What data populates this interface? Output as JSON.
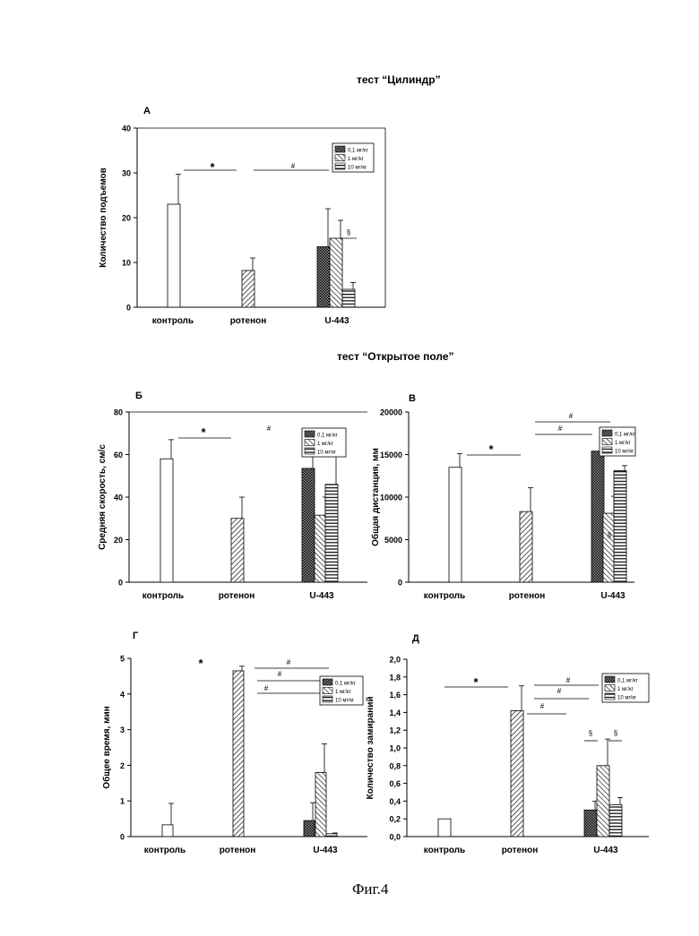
{
  "titles": {
    "cylinder": "тест “Цилиндр”",
    "open_field": "тест “Открытое поле”"
  },
  "caption": "Фиг.4",
  "legend": [
    "0,1 мг/кг",
    "1 мг/кг",
    "10 мг/кг"
  ],
  "chart_data": [
    {
      "panel": "А",
      "type": "bar",
      "ylabel": "Количество подъемов",
      "ylim": [
        0,
        40
      ],
      "yticks": [
        "0",
        "10",
        "20",
        "30",
        "40"
      ],
      "categories": [
        "контроль",
        "ротенон",
        "U-443"
      ],
      "bars": [
        {
          "group": "контроль",
          "value": 23,
          "error": 6.7
        },
        {
          "group": "ротенон",
          "value": 8.2,
          "error": 2.8
        },
        {
          "group": "U-443",
          "series": "0,1 мг/кг",
          "value": 13.5,
          "error": 8.5
        },
        {
          "group": "U-443",
          "series": "1 мг/кг",
          "value": 15.4,
          "error": 4
        },
        {
          "group": "U-443",
          "series": "10 мг/кг",
          "value": 4,
          "error": 1.5
        }
      ],
      "annotations": [
        "*",
        "#",
        "§"
      ]
    },
    {
      "panel": "Б",
      "type": "bar",
      "ylabel": "Средняя скорость, см/с",
      "ylim": [
        0,
        80
      ],
      "yticks": [
        "0",
        "20",
        "40",
        "60",
        "80"
      ],
      "categories": [
        "контроль",
        "ротенон",
        "U-443"
      ],
      "bars": [
        {
          "group": "контроль",
          "value": 58,
          "error": 9
        },
        {
          "group": "ротенон",
          "value": 30,
          "error": 10
        },
        {
          "group": "U-443",
          "series": "0,1 мг/кг",
          "value": 53.5,
          "error": 15.5
        },
        {
          "group": "U-443",
          "series": "1 мг/кг",
          "value": 31.5,
          "error": 8.5
        },
        {
          "group": "U-443",
          "series": "10 мг/кг",
          "value": 46,
          "error": 15
        }
      ],
      "annotations": [
        "*",
        "#"
      ]
    },
    {
      "panel": "В",
      "type": "bar",
      "ylabel": "Общая дистанция, мм",
      "ylim": [
        0,
        20000
      ],
      "yticks": [
        "0",
        "5000",
        "10000",
        "15000",
        "20000"
      ],
      "categories": [
        "контроль",
        "ротенон",
        "U-443"
      ],
      "bars": [
        {
          "group": "контроль",
          "value": 13500,
          "error": 1600
        },
        {
          "group": "ротенон",
          "value": 8300,
          "error": 2800
        },
        {
          "group": "U-443",
          "series": "0,1 мг/кг",
          "value": 15400,
          "error": 2700
        },
        {
          "group": "U-443",
          "series": "1 мг/кг",
          "value": 8100,
          "error": 2000
        },
        {
          "group": "U-443",
          "series": "10 мг/кг",
          "value": 13100,
          "error": 600
        }
      ],
      "annotations": [
        "*",
        "#",
        "#",
        "§"
      ]
    },
    {
      "panel": "Г",
      "type": "bar",
      "ylabel": "Общее время, мин",
      "ylim": [
        0,
        5
      ],
      "yticks": [
        "0",
        "1",
        "2",
        "3",
        "4",
        "5"
      ],
      "categories": [
        "контроль",
        "ротенон",
        "U-443"
      ],
      "bars": [
        {
          "group": "контроль",
          "value": 0.33,
          "error": 0.6
        },
        {
          "group": "ротенон",
          "value": 4.65,
          "error": 0.13
        },
        {
          "group": "U-443",
          "series": "0,1 мг/кг",
          "value": 0.45,
          "error": 0.5
        },
        {
          "group": "U-443",
          "series": "1 мг/кг",
          "value": 1.8,
          "error": 0.8
        },
        {
          "group": "U-443",
          "series": "10 мг/кг",
          "value": 0.08,
          "error": 0.02
        }
      ],
      "annotations": [
        "*",
        "#",
        "#",
        "#"
      ]
    },
    {
      "panel": "Д",
      "type": "bar",
      "ylabel": "Количество замираний",
      "ylim": [
        0,
        2
      ],
      "yticks": [
        "0,0",
        "0,2",
        "0,4",
        "0,6",
        "0,8",
        "1,0",
        "1,2",
        "1,4",
        "1,6",
        "1,8",
        "2,0"
      ],
      "categories": [
        "контроль",
        "ротенон",
        "U-443"
      ],
      "bars": [
        {
          "group": "контроль",
          "value": 0.2,
          "error": 0
        },
        {
          "group": "ротенон",
          "value": 1.42,
          "error": 0.28
        },
        {
          "group": "U-443",
          "series": "0,1 мг/кг",
          "value": 0.3,
          "error": 0.1
        },
        {
          "group": "U-443",
          "series": "1 мг/кг",
          "value": 0.8,
          "error": 0.3
        },
        {
          "group": "U-443",
          "series": "10 мг/кг",
          "value": 0.36,
          "error": 0.08
        }
      ],
      "annotations": [
        "*",
        "#",
        "#",
        "#",
        "§",
        "§"
      ]
    }
  ]
}
